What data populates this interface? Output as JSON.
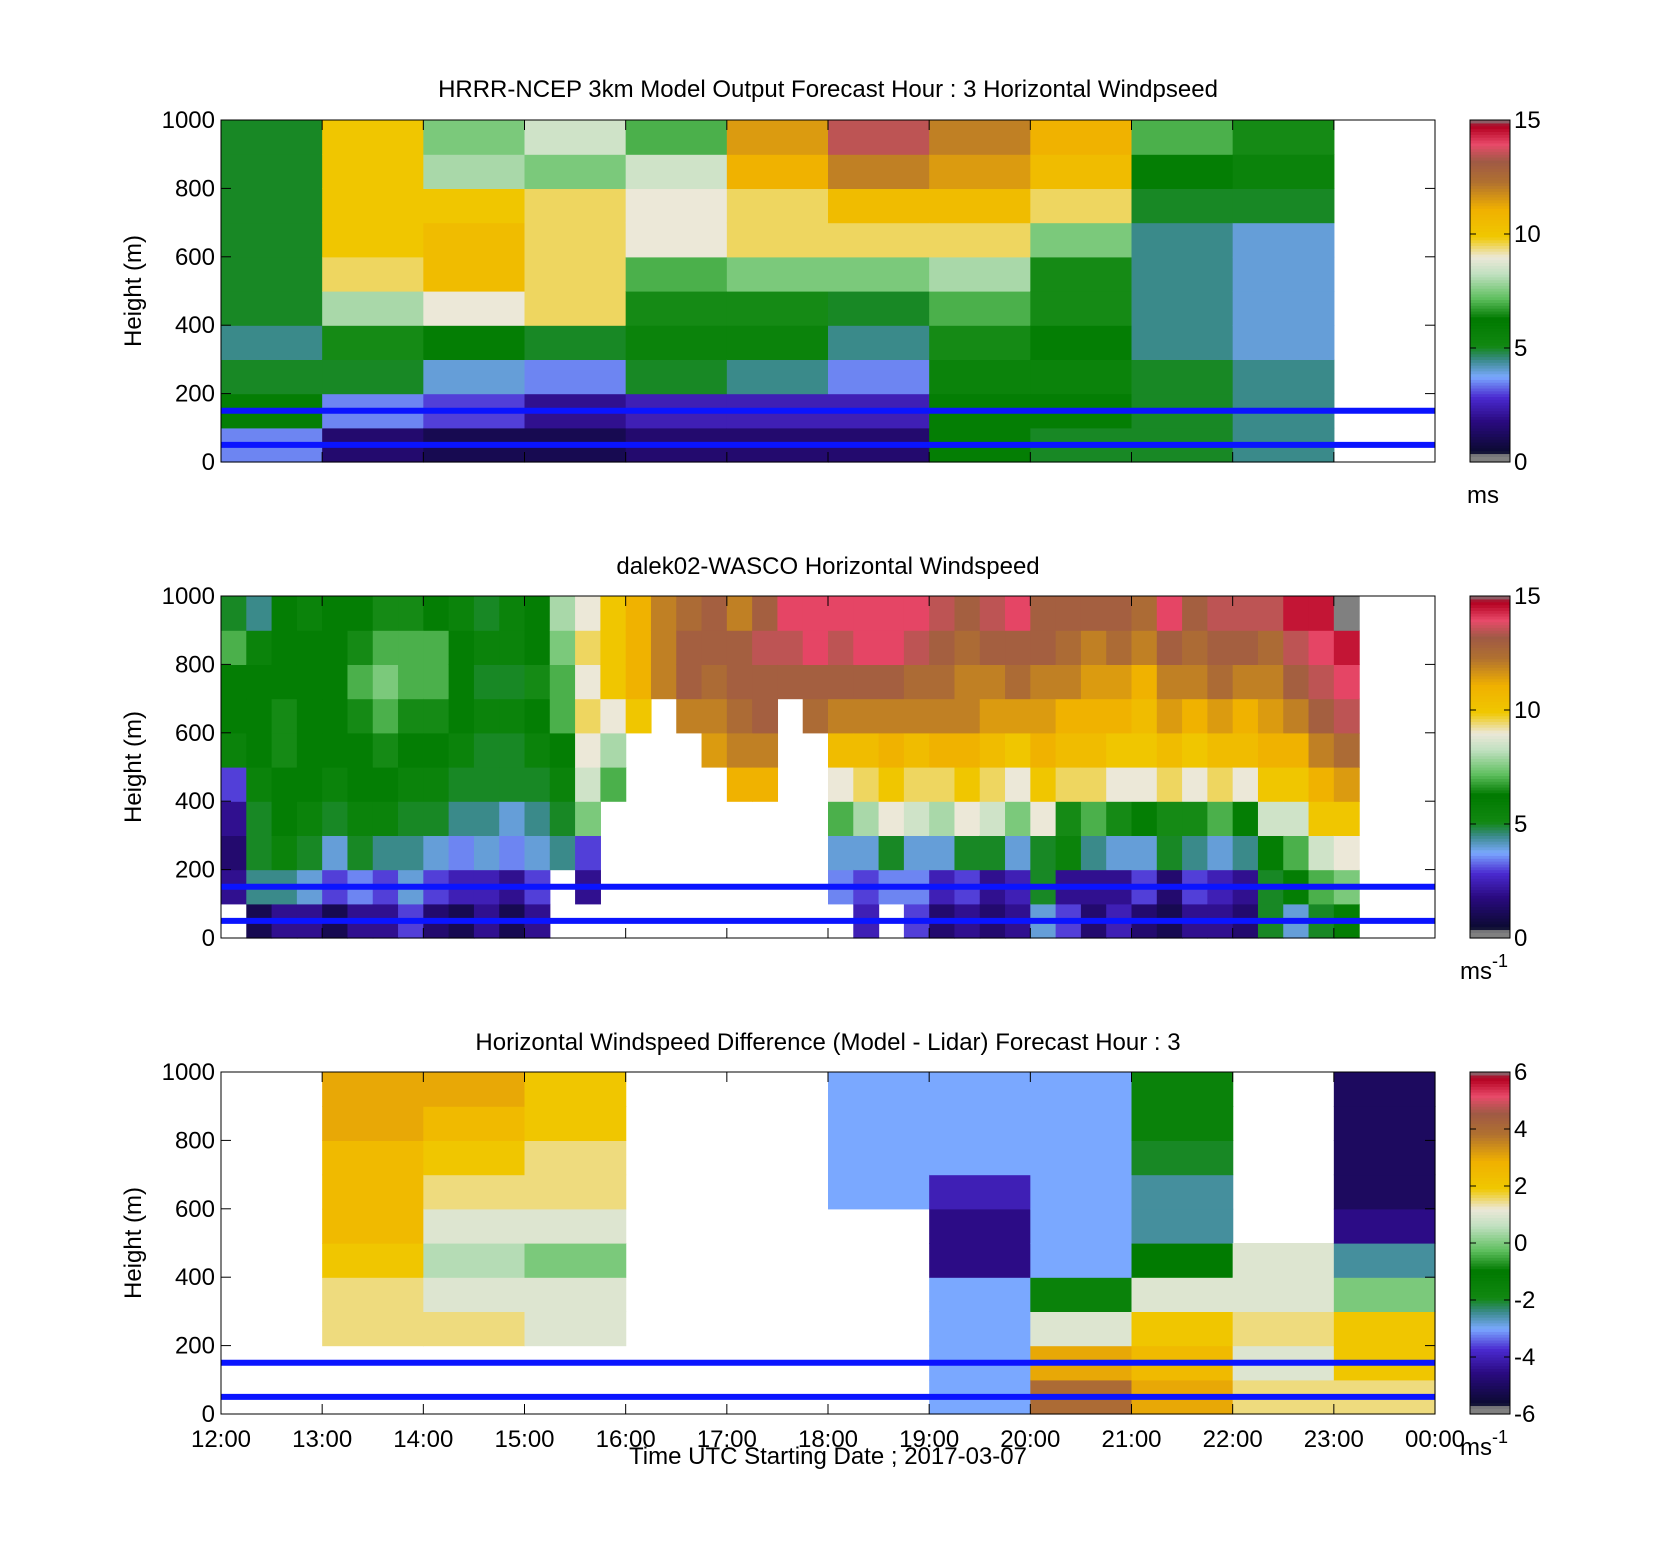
{
  "chart_data": [
    {
      "type": "heatmap",
      "title": "HRRR-NCEP 3km Model Output   Forecast Hour : 3 Horizontal Windpseed",
      "ylabel": "Height (m)",
      "xlabel": "",
      "ylim": [
        0,
        1000
      ],
      "yticks": [
        "0",
        "200",
        "400",
        "600",
        "800",
        "1000"
      ],
      "xlim_hours": [
        12,
        24
      ],
      "colorbar": {
        "ticks": [
          "0",
          "5",
          "10",
          "15"
        ],
        "range": [
          0,
          15
        ],
        "unit_label": "ms",
        "unit_sup": ""
      },
      "reference_lines_m": [
        50,
        150
      ],
      "columns_start_hour": 12,
      "column_width_hours": 1,
      "layer_height_m": 100,
      "values": [
        [
          3.5,
          6,
          5,
          4.5,
          5,
          5,
          5,
          5,
          5,
          5
        ],
        [
          1.5,
          3.5,
          5,
          6.5,
          8,
          9.5,
          10,
          10,
          10,
          10
        ],
        [
          1,
          3,
          4,
          6,
          9,
          10.5,
          10.5,
          10,
          8,
          7.5
        ],
        [
          1,
          2,
          3.5,
          5,
          9.5,
          9.5,
          9.5,
          9.5,
          7.5,
          8.5
        ],
        [
          1.5,
          2.5,
          5,
          5.5,
          6.5,
          7,
          9,
          9,
          8.5,
          7
        ],
        [
          1.5,
          2.5,
          4.5,
          5.5,
          6.5,
          7.5,
          9.5,
          9.5,
          11,
          11.5
        ],
        [
          1.5,
          2.5,
          3.5,
          4.5,
          5,
          7.5,
          9.5,
          10.5,
          12,
          13.5
        ],
        [
          6,
          6,
          5.5,
          6.5,
          7,
          8,
          9.5,
          10.5,
          11.5,
          12
        ],
        [
          5,
          6,
          5.5,
          6,
          6.5,
          6.5,
          7.5,
          9.5,
          10.5,
          11
        ],
        [
          5,
          5,
          5,
          4.5,
          4.5,
          4.5,
          4.5,
          5,
          6,
          7
        ],
        [
          4.5,
          4.5,
          4.5,
          4,
          4,
          4,
          4,
          5,
          5.5,
          6.5
        ]
      ]
    },
    {
      "type": "heatmap",
      "title": "dalek02-WASCO  Horizontal Windspeed",
      "ylabel": "Height (m)",
      "xlabel": "",
      "ylim": [
        0,
        1000
      ],
      "yticks": [
        "0",
        "200",
        "400",
        "600",
        "800",
        "1000"
      ],
      "xlim_hours": [
        12,
        24
      ],
      "colorbar": {
        "ticks": [
          "0",
          "5",
          "10",
          "15"
        ],
        "range": [
          0,
          15
        ],
        "unit_label": "ms",
        "unit_sup": "-1"
      },
      "reference_lines_m": [
        50,
        150
      ],
      "columns_start_hour": 12,
      "column_width_hours": 0.25,
      "layer_height_m": 100,
      "values": [
        [
          null,
          2,
          1.5,
          2,
          3,
          5.5,
          6,
          6,
          7,
          5
        ],
        [
          1,
          4.5,
          5,
          5,
          5.5,
          6,
          6,
          6,
          5.5,
          4.5
        ],
        [
          2,
          4.5,
          5.5,
          6,
          6,
          6.5,
          6.5,
          6,
          6,
          6
        ],
        [
          2,
          4,
          5,
          5.5,
          6,
          6,
          6,
          6,
          6,
          5.5
        ],
        [
          1,
          3,
          4,
          5,
          5.5,
          6,
          6,
          6,
          6,
          6
        ],
        [
          2,
          3.5,
          5,
          5.5,
          6,
          6,
          6.5,
          7,
          6.5,
          6
        ],
        [
          2,
          3,
          4.5,
          5.5,
          6,
          6.5,
          7,
          7.5,
          7,
          6.5
        ],
        [
          3,
          4,
          4.5,
          5,
          5.5,
          6,
          6.5,
          7,
          7,
          6.5
        ],
        [
          1.5,
          3,
          4,
          5,
          5.5,
          6,
          6.5,
          7,
          7,
          6
        ],
        [
          1,
          2.5,
          3.5,
          4.5,
          5,
          5.5,
          6,
          6,
          6,
          5.5
        ],
        [
          2,
          2.5,
          4,
          4.5,
          5,
          5,
          5.5,
          5,
          5.5,
          5
        ],
        [
          1,
          2,
          3.5,
          4,
          5,
          5,
          5.5,
          5,
          5.5,
          5.5
        ],
        [
          2,
          3,
          4,
          4.5,
          5,
          5.5,
          6,
          6.5,
          6,
          6
        ],
        [
          null,
          null,
          4.5,
          5,
          5.5,
          6,
          7,
          7,
          7.5,
          8
        ],
        [
          null,
          2,
          3,
          7.5,
          8.5,
          9,
          9.5,
          9,
          9.5,
          9
        ],
        [
          null,
          null,
          null,
          null,
          7,
          8,
          9,
          10,
          10,
          10
        ],
        [
          null,
          null,
          null,
          null,
          null,
          null,
          10,
          11,
          11,
          11
        ],
        [
          null,
          null,
          null,
          null,
          null,
          null,
          null,
          12,
          12,
          12
        ],
        [
          null,
          null,
          null,
          null,
          null,
          null,
          12,
          13,
          13,
          12.5
        ],
        [
          null,
          null,
          null,
          null,
          null,
          11.5,
          12,
          12.5,
          13,
          13
        ],
        [
          null,
          null,
          null,
          null,
          11,
          12,
          12.5,
          13,
          13,
          12
        ],
        [
          null,
          null,
          null,
          null,
          11,
          12,
          13,
          13,
          13.5,
          13
        ],
        [
          null,
          null,
          null,
          null,
          null,
          null,
          null,
          13,
          13.5,
          14
        ],
        [
          null,
          null,
          null,
          null,
          null,
          null,
          12.5,
          13,
          14,
          14
        ],
        [
          null,
          3.5,
          4,
          7,
          9,
          10.5,
          12,
          13,
          13.5,
          14
        ],
        [
          2.5,
          3,
          4,
          8,
          9.5,
          10.5,
          12,
          13,
          14,
          14
        ],
        [
          null,
          3.5,
          5,
          9,
          10,
          11,
          12,
          13,
          14,
          14
        ],
        [
          3,
          3.5,
          4,
          8.5,
          9.5,
          10.5,
          12,
          12.5,
          13.5,
          14
        ],
        [
          1.5,
          2.5,
          4,
          8,
          9.5,
          11,
          12,
          12.5,
          13,
          13.5
        ],
        [
          2,
          3,
          5,
          9,
          10,
          11,
          12,
          12,
          12.5,
          13
        ],
        [
          1.5,
          2,
          5,
          8.5,
          9.5,
          10.5,
          11.5,
          12,
          13,
          13.5
        ],
        [
          2,
          2.5,
          4,
          7.5,
          9,
          10,
          11.5,
          12.5,
          13,
          14
        ],
        [
          4,
          5,
          5,
          9,
          10,
          11,
          11.5,
          12,
          13,
          13
        ],
        [
          3,
          2,
          5.5,
          6.5,
          9.5,
          10.5,
          11,
          12,
          12.5,
          13
        ],
        [
          1.5,
          2,
          4.5,
          7,
          9.5,
          10.5,
          11,
          11.5,
          12,
          13
        ],
        [
          2.5,
          2,
          4,
          6.5,
          9,
          10,
          11,
          11.5,
          12.5,
          13
        ],
        [
          1.5,
          3,
          4,
          6,
          9,
          10,
          10.5,
          11,
          12,
          12.5
        ],
        [
          1,
          1.5,
          5,
          6.5,
          9.5,
          10.5,
          11.5,
          12,
          13,
          14
        ],
        [
          2,
          3,
          4.5,
          6.5,
          9,
          10,
          11,
          12,
          12.5,
          13
        ],
        [
          2,
          2.5,
          4,
          7,
          9.5,
          10.5,
          11.5,
          12.5,
          13,
          13.5
        ],
        [
          1.5,
          2,
          4.5,
          6,
          9,
          10.5,
          11,
          12,
          13,
          13.5
        ],
        [
          5,
          5,
          6,
          8.5,
          10,
          11,
          11.5,
          12,
          12.5,
          13.5
        ],
        [
          4,
          6,
          7,
          8.5,
          10,
          11,
          12,
          13,
          13.5,
          14.5
        ],
        [
          5,
          7,
          8.5,
          10,
          11,
          12,
          13,
          13.5,
          14,
          14.5
        ],
        [
          6,
          7.5,
          9,
          10,
          11.5,
          12.5,
          13.5,
          14,
          14.5,
          15
        ]
      ]
    },
    {
      "type": "heatmap",
      "title": "Horizontal Windspeed Difference (Model - Lidar) Forecast Hour : 3",
      "ylabel": "Height (m)",
      "xlabel": "Time UTC  Starting Date ; 2017-03-07",
      "ylim": [
        0,
        1000
      ],
      "yticks": [
        "0",
        "200",
        "400",
        "600",
        "800",
        "1000"
      ],
      "xticks": [
        "12:00",
        "13:00",
        "14:00",
        "15:00",
        "16:00",
        "17:00",
        "18:00",
        "19:00",
        "20:00",
        "21:00",
        "22:00",
        "23:00",
        "00:00"
      ],
      "xlim_hours": [
        12,
        24
      ],
      "colorbar": {
        "ticks": [
          "-6",
          "-4",
          "-2",
          "0",
          "2",
          "4",
          "6"
        ],
        "range": [
          -6,
          6
        ],
        "unit_label": "ms",
        "unit_sup": "-1"
      },
      "reference_lines_m": [
        50,
        150
      ],
      "columns_start_hour": 12,
      "column_width_hours": 1,
      "layer_height_m": 100,
      "values": [
        [
          null,
          null,
          null,
          null,
          null,
          null,
          null,
          null,
          null,
          null
        ],
        [
          null,
          null,
          1.5,
          1.5,
          2,
          2.5,
          2.5,
          2.5,
          3,
          3
        ],
        [
          null,
          null,
          1.5,
          1,
          0.5,
          1,
          1.5,
          2,
          2.5,
          3
        ],
        [
          null,
          null,
          1,
          1,
          0,
          1,
          1.5,
          1.5,
          2,
          2
        ],
        [
          null,
          null,
          null,
          null,
          null,
          null,
          null,
          null,
          null,
          null
        ],
        [
          null,
          null,
          null,
          null,
          null,
          null,
          null,
          null,
          null,
          null
        ],
        [
          null,
          null,
          null,
          null,
          null,
          null,
          -3,
          -3,
          -3,
          -3
        ],
        [
          -3,
          -3,
          -3,
          -3,
          -4.5,
          -4.5,
          -4,
          -3,
          -3,
          -3
        ],
        [
          4,
          3,
          1,
          -1.5,
          -3,
          -3,
          -3,
          -3,
          -3,
          -3
        ],
        [
          3,
          2.5,
          2,
          1,
          -1,
          -2.5,
          -2.5,
          -2,
          -1.5,
          -1.5
        ],
        [
          1.5,
          1,
          1.5,
          1,
          1,
          null,
          null,
          null,
          null,
          null
        ],
        [
          1.5,
          2,
          2,
          0,
          -2.5,
          -4.5,
          -5,
          -5,
          -5,
          -5
        ]
      ]
    }
  ]
}
